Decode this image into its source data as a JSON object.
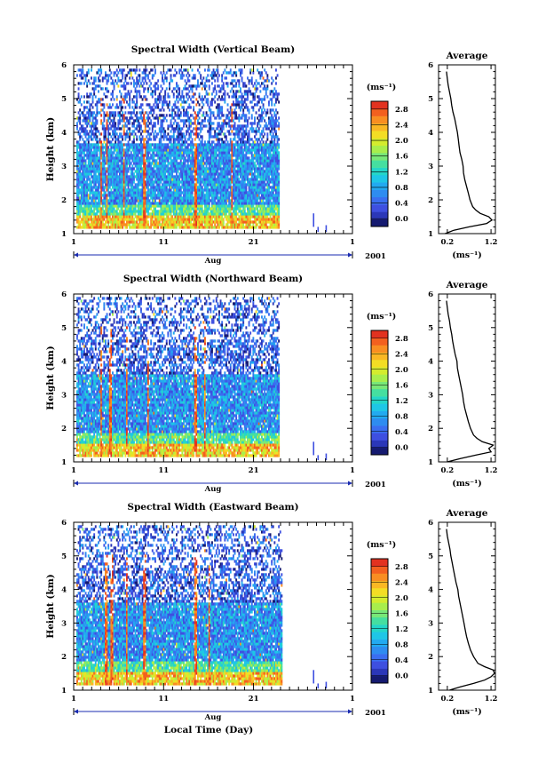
{
  "chart_data": {
    "type": "heatmap",
    "xlabel": "Local Time (Day)",
    "date_caption": "Aug",
    "year_label": "2001",
    "colorbar": {
      "unit": "(ms⁻¹)",
      "ticks": [
        "0.0",
        "0.4",
        "0.8",
        "1.2",
        "1.6",
        "2.0",
        "2.4",
        "2.8"
      ],
      "range": [
        -0.2,
        3.0
      ],
      "colors": [
        "#151a70",
        "#2b37b8",
        "#3e4fe0",
        "#3a6ef0",
        "#2e8cf0",
        "#22aaf0",
        "#1ec6e6",
        "#24d6c8",
        "#45dfa0",
        "#78e878",
        "#a8ee4c",
        "#d4ec2e",
        "#f3dd24",
        "#fab824",
        "#f98e22",
        "#f3601f",
        "#e23220"
      ]
    },
    "panels": [
      {
        "title": "Spectral Width (Vertical Beam)",
        "ylabel": "Height (km)",
        "x_ticks": [
          "1",
          "11",
          "21",
          "1"
        ],
        "y_ticks": [
          "1",
          "2",
          "3",
          "4",
          "5",
          "6"
        ],
        "xlim": [
          1,
          32
        ],
        "ylim": [
          1,
          6
        ],
        "data_end_day": 23.8,
        "average": {
          "title": "Average",
          "xlabel": "(ms⁻¹)",
          "x_ticks": [
            "0.2",
            "1.2"
          ],
          "xlim": [
            0.0,
            1.3
          ],
          "heights": [
            1.0,
            1.1,
            1.2,
            1.3,
            1.4,
            1.5,
            1.6,
            1.7,
            1.8,
            2.0,
            2.2,
            2.4,
            2.6,
            2.8,
            3.0,
            3.2,
            3.4,
            3.6,
            3.8,
            4.0,
            4.2,
            4.4,
            4.6,
            4.8,
            5.0,
            5.2,
            5.4,
            5.6,
            5.8
          ],
          "values": [
            0.15,
            0.35,
            0.7,
            1.1,
            1.22,
            1.15,
            0.95,
            0.85,
            0.78,
            0.72,
            0.68,
            0.64,
            0.6,
            0.57,
            0.56,
            0.53,
            0.49,
            0.47,
            0.45,
            0.43,
            0.4,
            0.37,
            0.33,
            0.3,
            0.28,
            0.25,
            0.22,
            0.2,
            0.18
          ]
        }
      },
      {
        "title": "Spectral Width (Northward Beam)",
        "ylabel": "Height (km)",
        "x_ticks": [
          "1",
          "11",
          "21",
          "1"
        ],
        "y_ticks": [
          "1",
          "2",
          "3",
          "4",
          "5",
          "6"
        ],
        "xlim": [
          1,
          32
        ],
        "ylim": [
          1,
          6
        ],
        "data_end_day": 23.8,
        "average": {
          "title": "Average",
          "xlabel": "(ms⁻¹)",
          "x_ticks": [
            "0.2",
            "1.2"
          ],
          "xlim": [
            0.0,
            1.3
          ],
          "heights": [
            1.0,
            1.1,
            1.2,
            1.3,
            1.4,
            1.5,
            1.6,
            1.7,
            1.8,
            2.0,
            2.2,
            2.4,
            2.6,
            2.8,
            3.0,
            3.2,
            3.4,
            3.6,
            3.8,
            4.0,
            4.2,
            4.4,
            4.6,
            4.8,
            5.0,
            5.2,
            5.4,
            5.6,
            5.8
          ],
          "values": [
            0.2,
            0.5,
            0.85,
            1.2,
            1.15,
            1.25,
            1.0,
            0.88,
            0.8,
            0.73,
            0.68,
            0.64,
            0.6,
            0.57,
            0.55,
            0.52,
            0.49,
            0.46,
            0.43,
            0.42,
            0.38,
            0.35,
            0.32,
            0.3,
            0.27,
            0.25,
            0.22,
            0.2,
            0.18
          ]
        }
      },
      {
        "title": "Spectral Width (Eastward Beam)",
        "ylabel": "Height (km)",
        "x_ticks": [
          "1",
          "11",
          "21",
          "1"
        ],
        "y_ticks": [
          "1",
          "2",
          "3",
          "4",
          "5",
          "6"
        ],
        "xlim": [
          1,
          32
        ],
        "ylim": [
          1,
          6
        ],
        "data_end_day": 24.2,
        "average": {
          "title": "Average",
          "xlabel": "(ms⁻¹)",
          "x_ticks": [
            "0.2",
            "1.2"
          ],
          "xlim": [
            0.0,
            1.3
          ],
          "heights": [
            1.0,
            1.1,
            1.2,
            1.3,
            1.4,
            1.5,
            1.6,
            1.7,
            1.8,
            2.0,
            2.2,
            2.4,
            2.6,
            2.8,
            3.0,
            3.2,
            3.4,
            3.6,
            3.8,
            4.0,
            4.2,
            4.4,
            4.6,
            4.8,
            5.0,
            5.2,
            5.4,
            5.6,
            5.8
          ],
          "values": [
            0.25,
            0.5,
            0.8,
            1.05,
            1.2,
            1.28,
            1.25,
            1.05,
            0.9,
            0.8,
            0.73,
            0.68,
            0.64,
            0.61,
            0.58,
            0.55,
            0.52,
            0.49,
            0.46,
            0.44,
            0.4,
            0.37,
            0.34,
            0.31,
            0.28,
            0.26,
            0.23,
            0.2,
            0.18
          ]
        }
      }
    ]
  }
}
